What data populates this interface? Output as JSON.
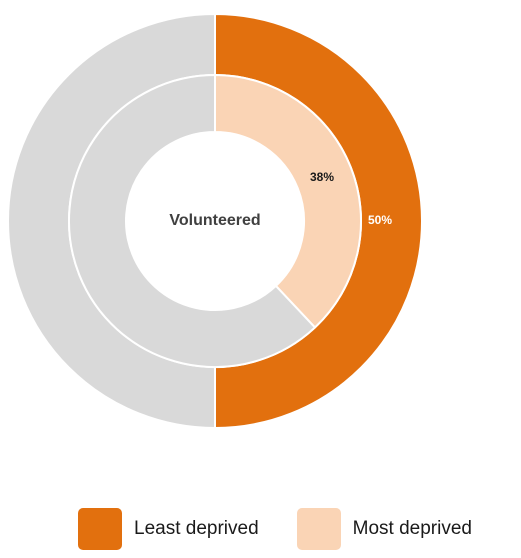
{
  "chart_data": {
    "type": "pie",
    "subtype": "nested-donut",
    "center_label": "Volunteered",
    "series": [
      {
        "name": "Least deprived",
        "value": 50,
        "label": "50%",
        "ring": "outer",
        "color": "#E2700E"
      },
      {
        "name": "Most deprived",
        "value": 38,
        "label": "38%",
        "ring": "inner",
        "color": "#FAD4B5"
      }
    ],
    "remainder_color": "#D9D9D9",
    "legend_position": "bottom",
    "legend": [
      {
        "label": "Least deprived",
        "color": "#E2700E"
      },
      {
        "label": "Most deprived",
        "color": "#FAD4B5"
      }
    ]
  }
}
